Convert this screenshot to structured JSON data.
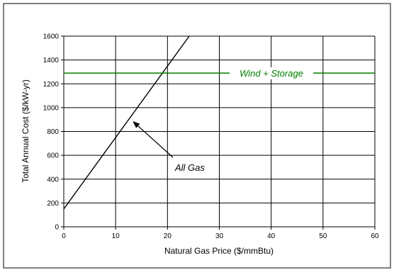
{
  "chart_data": {
    "type": "line",
    "title": "",
    "xlabel": "Natural Gas Price ($/mmBtu)",
    "ylabel": "Total Annual Cost ($/kW-yr)",
    "xlim": [
      0,
      60
    ],
    "ylim": [
      0,
      1600
    ],
    "xticks": [
      0,
      10,
      20,
      30,
      40,
      50,
      60
    ],
    "yticks": [
      0,
      200,
      400,
      600,
      800,
      1000,
      1200,
      1400,
      1600
    ],
    "grid": true,
    "colors": {
      "all_gas": "#000000",
      "wind_storage": "#008000",
      "grid": "#000000"
    },
    "series": [
      {
        "name": "All Gas",
        "x": [
          0,
          24.2
        ],
        "y": [
          150,
          1600
        ],
        "color": "#000000"
      },
      {
        "name": "Wind + Storage",
        "x": [
          0,
          60
        ],
        "y": [
          1290,
          1290
        ],
        "color": "#008000"
      }
    ],
    "annotations": [
      {
        "text": "All Gas",
        "arrow_to": {
          "x": 13,
          "y": 900
        }
      },
      {
        "text": "Wind + Storage"
      }
    ]
  }
}
